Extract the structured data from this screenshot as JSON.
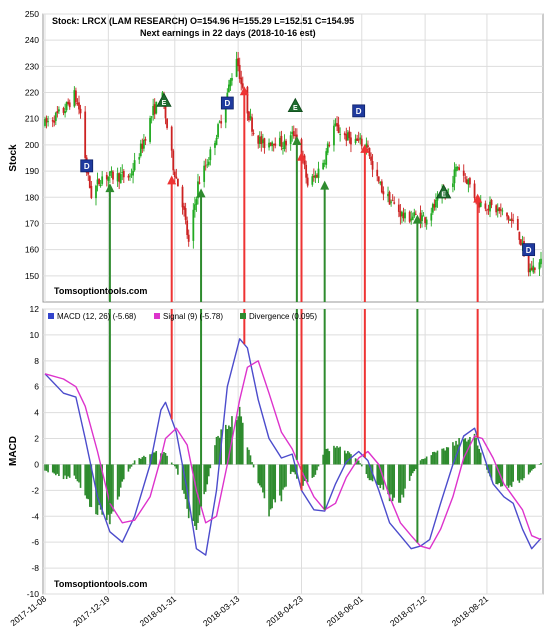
{
  "chart_data": [
    {
      "type": "candlestick",
      "title_line1": "Stock: LRCX (LAM RESEARCH) O=154.96  H=155.29  L=152.51  C=154.95",
      "title_line2": "Next earnings in 22 days  (2018-10-16 est)",
      "ylabel": "Stock",
      "watermark": "Tomsoptiontools.com",
      "ylim": [
        140,
        250
      ],
      "yticks": [
        150,
        160,
        170,
        180,
        190,
        200,
        210,
        220,
        230,
        240,
        250
      ],
      "x_ticks": [
        "2017-11-08",
        "2017-12-19",
        "2018-01-31",
        "2018-03-13",
        "2018-04-23",
        "2018-06-01",
        "2018-07-12",
        "2018-08-21"
      ],
      "x_range": [
        "2017-11-08",
        "2018-09-25"
      ],
      "grid": true,
      "price_path": [
        [
          "2017-11-08",
          208
        ],
        [
          "2017-11-20",
          213
        ],
        [
          "2017-11-27",
          219
        ],
        [
          "2017-12-01",
          212
        ],
        [
          "2017-12-05",
          190
        ],
        [
          "2017-12-08",
          181
        ],
        [
          "2017-12-15",
          188
        ],
        [
          "2017-12-22",
          188
        ],
        [
          "2018-01-02",
          188
        ],
        [
          "2018-01-10",
          200
        ],
        [
          "2018-01-17",
          213
        ],
        [
          "2018-01-23",
          218
        ],
        [
          "2018-01-30",
          192
        ],
        [
          "2018-02-05",
          178
        ],
        [
          "2018-02-09",
          162
        ],
        [
          "2018-02-15",
          185
        ],
        [
          "2018-02-22",
          195
        ],
        [
          "2018-03-01",
          208
        ],
        [
          "2018-03-07",
          222
        ],
        [
          "2018-03-12",
          234
        ],
        [
          "2018-03-16",
          220
        ],
        [
          "2018-03-23",
          205
        ],
        [
          "2018-03-29",
          200
        ],
        [
          "2018-04-05",
          202
        ],
        [
          "2018-04-12",
          200
        ],
        [
          "2018-04-19",
          205
        ],
        [
          "2018-04-23",
          197
        ],
        [
          "2018-04-27",
          185
        ],
        [
          "2018-05-02",
          188
        ],
        [
          "2018-05-08",
          195
        ],
        [
          "2018-05-14",
          207
        ],
        [
          "2018-05-22",
          203
        ],
        [
          "2018-05-30",
          201
        ],
        [
          "2018-06-05",
          200
        ],
        [
          "2018-06-08",
          190
        ],
        [
          "2018-06-15",
          182
        ],
        [
          "2018-06-22",
          177
        ],
        [
          "2018-06-29",
          172
        ],
        [
          "2018-07-06",
          173
        ],
        [
          "2018-07-12",
          172
        ],
        [
          "2018-07-20",
          178
        ],
        [
          "2018-07-27",
          183
        ],
        [
          "2018-08-02",
          192
        ],
        [
          "2018-08-09",
          186
        ],
        [
          "2018-08-15",
          178
        ],
        [
          "2018-08-21",
          177
        ],
        [
          "2018-08-28",
          175
        ],
        [
          "2018-09-04",
          172
        ],
        [
          "2018-09-10",
          168
        ],
        [
          "2018-09-14",
          158
        ],
        [
          "2018-09-17",
          152
        ],
        [
          "2018-09-25",
          155
        ]
      ],
      "markers": [
        {
          "date": "2017-12-05",
          "type": "D",
          "price": 192
        },
        {
          "date": "2018-01-24",
          "type": "E",
          "price": 217
        },
        {
          "date": "2018-03-06",
          "type": "D",
          "price": 216
        },
        {
          "date": "2018-04-19",
          "type": "E",
          "price": 215
        },
        {
          "date": "2018-05-30",
          "type": "D",
          "price": 213
        },
        {
          "date": "2018-07-24",
          "type": "E",
          "price": 182
        },
        {
          "date": "2018-09-17",
          "type": "D",
          "price": 160
        }
      ],
      "signals": [
        {
          "date": "2017-12-20",
          "direction": "buy",
          "tip_price": 185
        },
        {
          "date": "2018-01-29",
          "direction": "sell",
          "tip_price": 188
        },
        {
          "date": "2018-02-17",
          "direction": "buy",
          "tip_price": 183
        },
        {
          "date": "2018-03-17",
          "direction": "sell",
          "tip_price": 222
        },
        {
          "date": "2018-04-20",
          "direction": "buy",
          "tip_price": 203
        },
        {
          "date": "2018-04-23",
          "direction": "sell",
          "tip_price": 197
        },
        {
          "date": "2018-05-08",
          "direction": "buy",
          "tip_price": 186
        },
        {
          "date": "2018-06-03",
          "direction": "sell",
          "tip_price": 200
        },
        {
          "date": "2018-07-07",
          "direction": "buy",
          "tip_price": 173
        },
        {
          "date": "2018-08-15",
          "direction": "sell",
          "tip_price": 181
        }
      ]
    },
    {
      "type": "line",
      "ylabel": "MACD",
      "watermark": "Tomsoptiontools.com",
      "ylim": [
        -10,
        12
      ],
      "yticks": [
        -10,
        -8,
        -6,
        -4,
        -2,
        0,
        2,
        4,
        6,
        8,
        10,
        12
      ],
      "grid": true,
      "legend": [
        {
          "label": "MACD (12, 26) (-5.68)",
          "color": "#3344cc"
        },
        {
          "label": "Signal (9) (-5.78)",
          "color": "#dd33cc"
        },
        {
          "label": "Divergence (0.095)",
          "color": "#2e8b2e"
        }
      ],
      "series": [
        {
          "name": "MACD (12, 26)",
          "color": "#4c4ccc",
          "points": [
            [
              "2017-11-08",
              7.0
            ],
            [
              "2017-11-20",
              5.5
            ],
            [
              "2017-11-28",
              5.2
            ],
            [
              "2017-12-04",
              2.0
            ],
            [
              "2017-12-12",
              -2.5
            ],
            [
              "2017-12-20",
              -5.2
            ],
            [
              "2017-12-28",
              -6.0
            ],
            [
              "2018-01-05",
              -4.0
            ],
            [
              "2018-01-15",
              0.0
            ],
            [
              "2018-01-22",
              4.2
            ],
            [
              "2018-01-25",
              4.8
            ],
            [
              "2018-02-01",
              2.5
            ],
            [
              "2018-02-08",
              -2.0
            ],
            [
              "2018-02-14",
              -6.5
            ],
            [
              "2018-02-20",
              -7.0
            ],
            [
              "2018-02-27",
              -2.0
            ],
            [
              "2018-03-06",
              6.0
            ],
            [
              "2018-03-14",
              9.7
            ],
            [
              "2018-03-19",
              9.0
            ],
            [
              "2018-03-26",
              5.0
            ],
            [
              "2018-04-02",
              2.0
            ],
            [
              "2018-04-10",
              0.5
            ],
            [
              "2018-04-17",
              0.8
            ],
            [
              "2018-04-23",
              -2.0
            ],
            [
              "2018-05-01",
              -3.5
            ],
            [
              "2018-05-08",
              -3.6
            ],
            [
              "2018-05-15",
              -1.5
            ],
            [
              "2018-05-22",
              0.2
            ],
            [
              "2018-05-30",
              1.0
            ],
            [
              "2018-06-05",
              0.3
            ],
            [
              "2018-06-12",
              -2.0
            ],
            [
              "2018-06-19",
              -4.5
            ],
            [
              "2018-06-26",
              -5.5
            ],
            [
              "2018-07-03",
              -6.5
            ],
            [
              "2018-07-09",
              -6.3
            ],
            [
              "2018-07-15",
              -5.8
            ],
            [
              "2018-07-22",
              -3.0
            ],
            [
              "2018-07-30",
              0.0
            ],
            [
              "2018-08-06",
              2.2
            ],
            [
              "2018-08-13",
              2.8
            ],
            [
              "2018-08-18",
              1.0
            ],
            [
              "2018-08-25",
              -1.5
            ],
            [
              "2018-09-01",
              -2.5
            ],
            [
              "2018-09-07",
              -3.0
            ],
            [
              "2018-09-13",
              -5.0
            ],
            [
              "2018-09-19",
              -6.5
            ],
            [
              "2018-09-25",
              -5.7
            ]
          ]
        },
        {
          "name": "Signal (9)",
          "color": "#dd33cc",
          "points": [
            [
              "2017-11-08",
              7.0
            ],
            [
              "2017-11-20",
              6.6
            ],
            [
              "2017-11-28",
              6.0
            ],
            [
              "2017-12-04",
              4.5
            ],
            [
              "2017-12-12",
              1.0
            ],
            [
              "2017-12-20",
              -3.0
            ],
            [
              "2017-12-28",
              -4.5
            ],
            [
              "2018-01-05",
              -4.3
            ],
            [
              "2018-01-15",
              -2.5
            ],
            [
              "2018-01-22",
              0.5
            ],
            [
              "2018-01-25",
              2.0
            ],
            [
              "2018-02-01",
              2.8
            ],
            [
              "2018-02-08",
              1.5
            ],
            [
              "2018-02-14",
              -2.0
            ],
            [
              "2018-02-20",
              -4.5
            ],
            [
              "2018-02-27",
              -4.0
            ],
            [
              "2018-03-06",
              0.0
            ],
            [
              "2018-03-14",
              5.0
            ],
            [
              "2018-03-19",
              7.5
            ],
            [
              "2018-03-26",
              8.0
            ],
            [
              "2018-04-02",
              5.5
            ],
            [
              "2018-04-10",
              2.5
            ],
            [
              "2018-04-17",
              1.2
            ],
            [
              "2018-04-23",
              -0.5
            ],
            [
              "2018-05-01",
              -2.5
            ],
            [
              "2018-05-08",
              -3.5
            ],
            [
              "2018-05-15",
              -3.0
            ],
            [
              "2018-05-22",
              -1.0
            ],
            [
              "2018-05-30",
              0.5
            ],
            [
              "2018-06-05",
              1.0
            ],
            [
              "2018-06-12",
              0.0
            ],
            [
              "2018-06-19",
              -2.5
            ],
            [
              "2018-06-26",
              -4.5
            ],
            [
              "2018-07-03",
              -5.5
            ],
            [
              "2018-07-09",
              -6.3
            ],
            [
              "2018-07-15",
              -6.5
            ],
            [
              "2018-07-22",
              -5.0
            ],
            [
              "2018-07-30",
              -2.5
            ],
            [
              "2018-08-06",
              0.5
            ],
            [
              "2018-08-13",
              2.2
            ],
            [
              "2018-08-18",
              2.0
            ],
            [
              "2018-08-25",
              0.5
            ],
            [
              "2018-09-01",
              -1.5
            ],
            [
              "2018-09-07",
              -2.5
            ],
            [
              "2018-09-13",
              -3.5
            ],
            [
              "2018-09-19",
              -5.5
            ],
            [
              "2018-09-25",
              -5.8
            ]
          ]
        }
      ],
      "divergence": {
        "color": "#2e8b2e",
        "points": [
          [
            "2017-11-08",
            -0.5
          ],
          [
            "2017-11-20",
            -1.0
          ],
          [
            "2017-11-28",
            -1.0
          ],
          [
            "2017-12-04",
            -2.5
          ],
          [
            "2017-12-12",
            -3.5
          ],
          [
            "2017-12-20",
            -4.5
          ],
          [
            "2017-12-28",
            -1.5
          ],
          [
            "2018-01-05",
            0.3
          ],
          [
            "2018-01-15",
            0.8
          ],
          [
            "2018-01-22",
            1.0
          ],
          [
            "2018-01-25",
            0.8
          ],
          [
            "2018-02-01",
            -0.3
          ],
          [
            "2018-02-08",
            -3.5
          ],
          [
            "2018-02-14",
            -4.5
          ],
          [
            "2018-02-20",
            -2.0
          ],
          [
            "2018-02-27",
            2.0
          ],
          [
            "2018-03-06",
            3.0
          ],
          [
            "2018-03-14",
            4.0
          ],
          [
            "2018-03-19",
            1.5
          ],
          [
            "2018-03-26",
            -1.5
          ],
          [
            "2018-04-02",
            -3.5
          ],
          [
            "2018-04-10",
            -2.5
          ],
          [
            "2018-04-17",
            -0.5
          ],
          [
            "2018-04-23",
            -1.5
          ],
          [
            "2018-05-01",
            -1.0
          ],
          [
            "2018-05-08",
            1.0
          ],
          [
            "2018-05-15",
            1.5
          ],
          [
            "2018-05-22",
            1.0
          ],
          [
            "2018-05-30",
            0.3
          ],
          [
            "2018-06-05",
            -1.0
          ],
          [
            "2018-06-12",
            -1.5
          ],
          [
            "2018-06-19",
            -2.5
          ],
          [
            "2018-06-26",
            -3.0
          ],
          [
            "2018-07-03",
            -1.0
          ],
          [
            "2018-07-09",
            0.3
          ],
          [
            "2018-07-15",
            0.8
          ],
          [
            "2018-07-22",
            1.0
          ],
          [
            "2018-07-30",
            1.5
          ],
          [
            "2018-08-06",
            2.0
          ],
          [
            "2018-08-13",
            2.2
          ],
          [
            "2018-08-18",
            0.5
          ],
          [
            "2018-08-25",
            -1.5
          ],
          [
            "2018-09-01",
            -1.8
          ],
          [
            "2018-09-07",
            -1.5
          ],
          [
            "2018-09-13",
            -1.2
          ],
          [
            "2018-09-19",
            -0.5
          ],
          [
            "2018-09-25",
            0.1
          ]
        ]
      }
    }
  ]
}
